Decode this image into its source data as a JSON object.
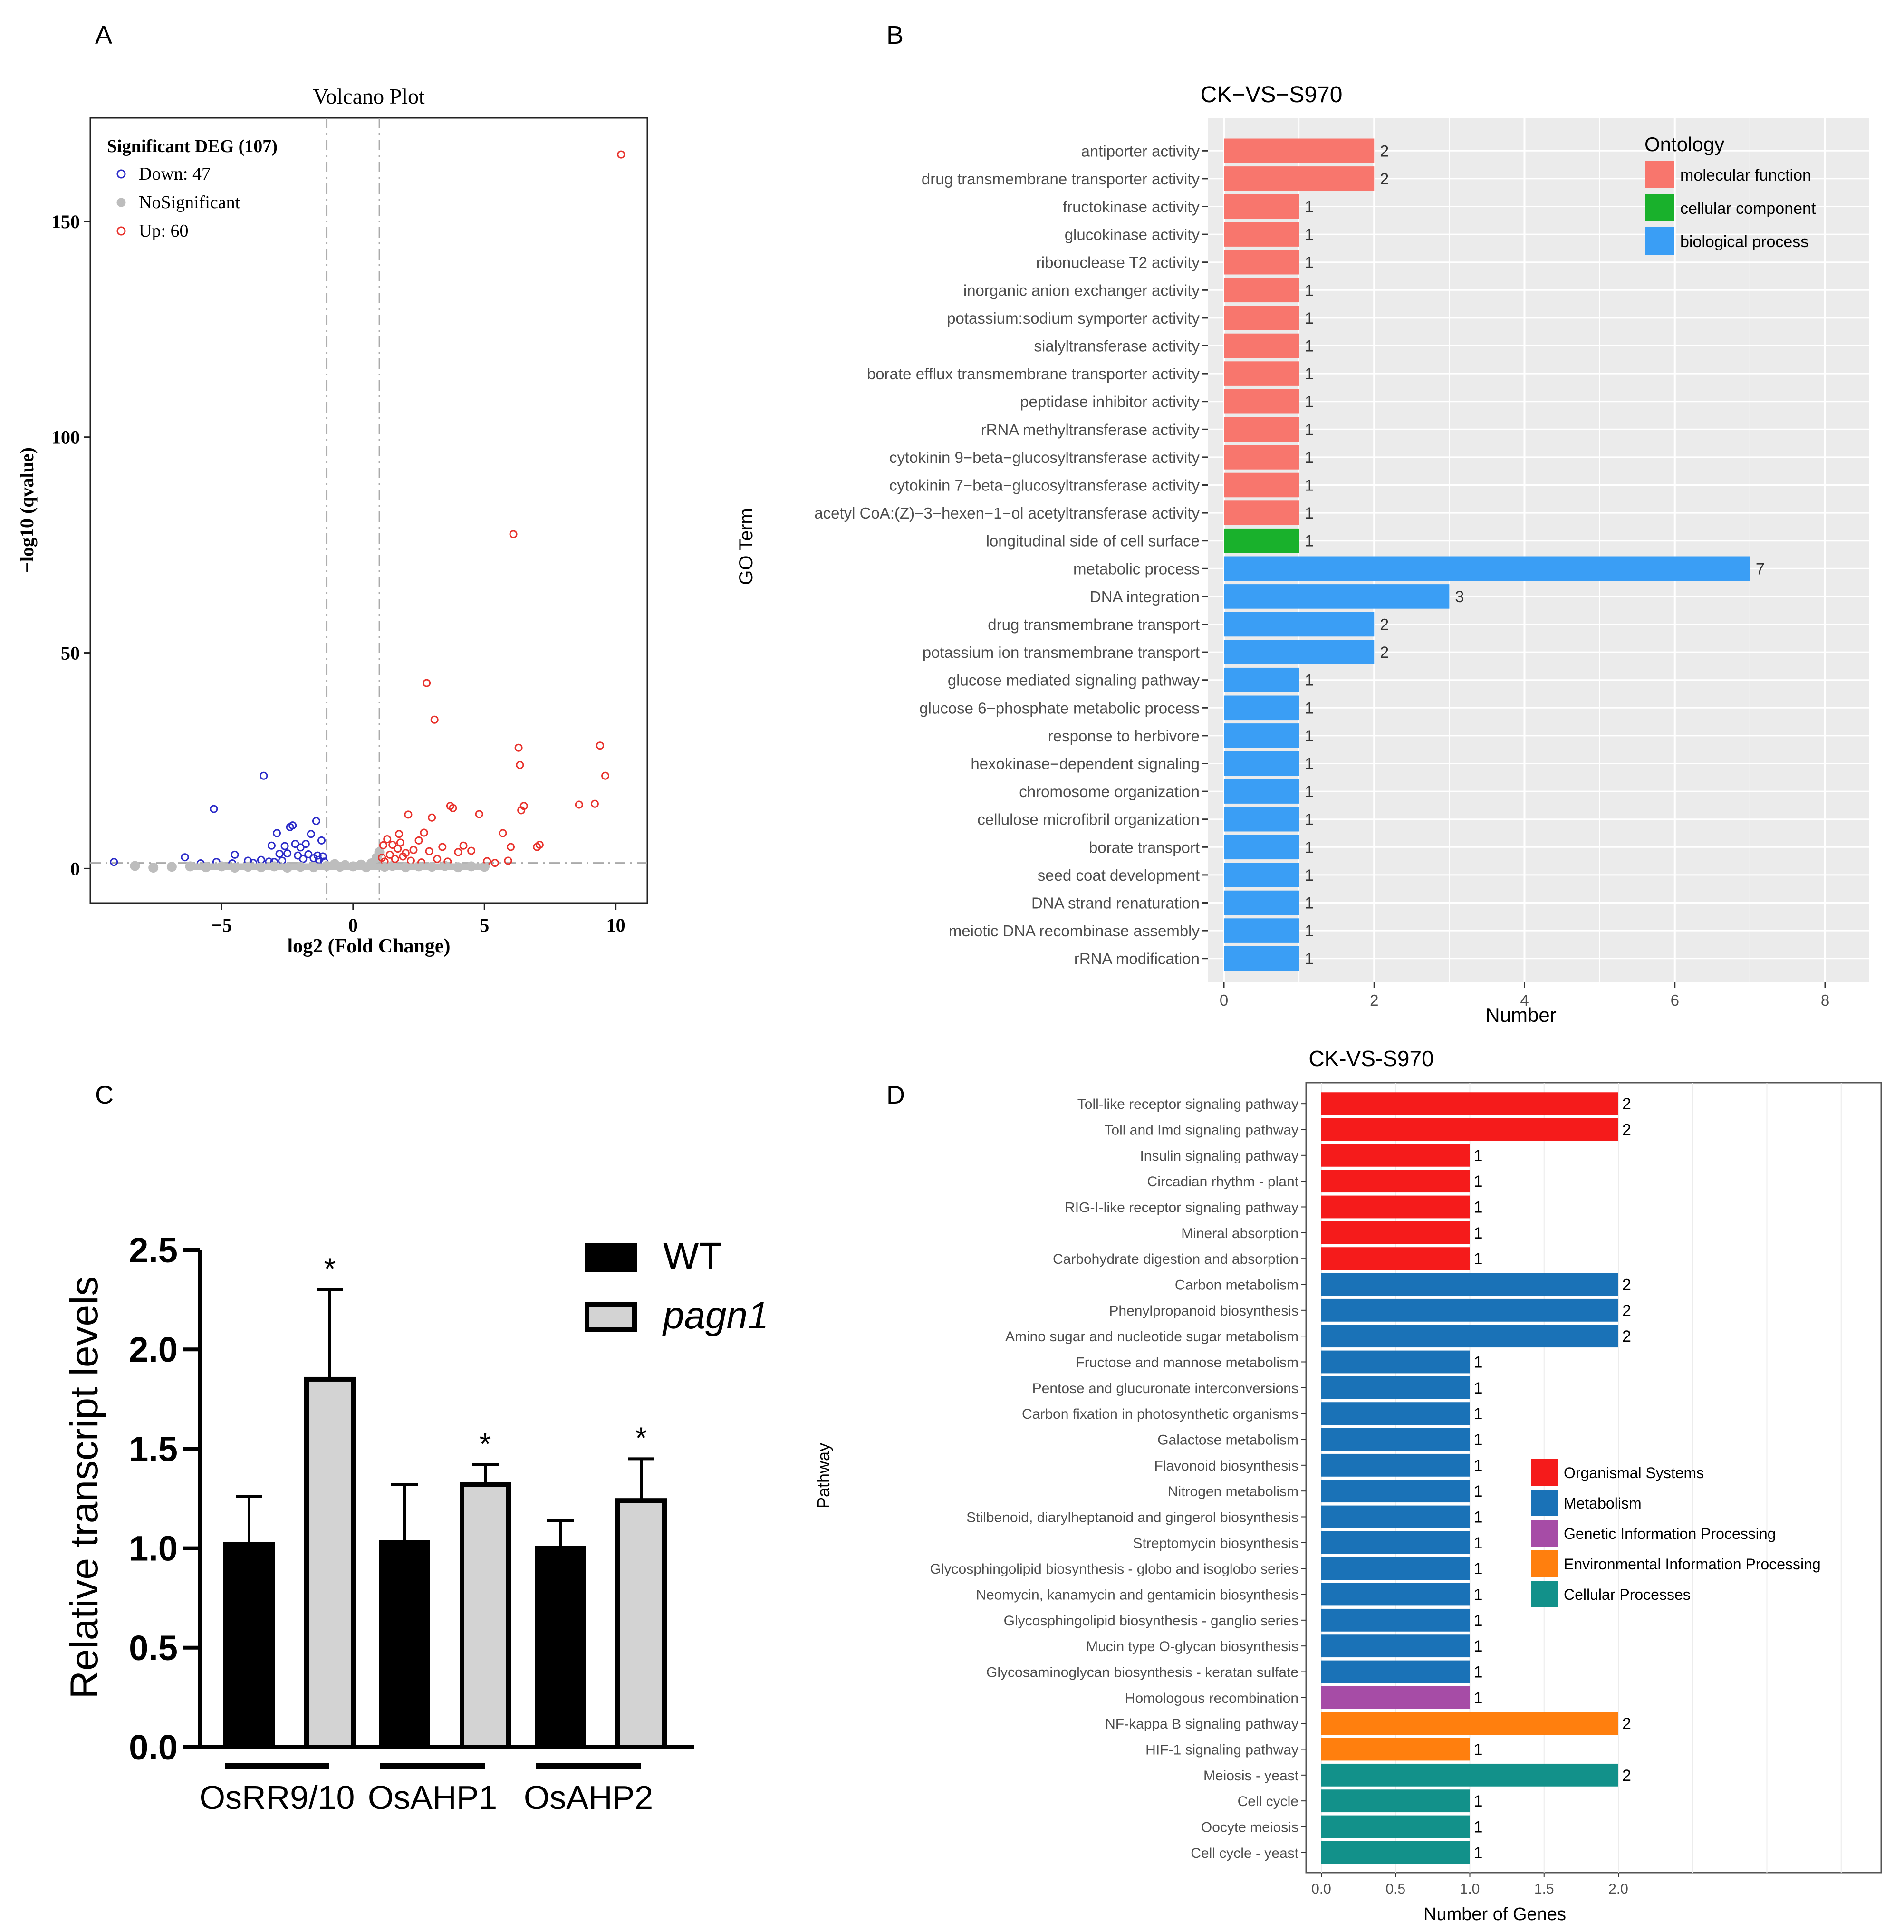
{
  "panel_letters": [
    "A",
    "B",
    "C",
    "D"
  ],
  "chart_data": [
    {
      "id": "A",
      "type": "scatter",
      "title": "Volcano Plot",
      "xlabel": "log2 (Fold Change)",
      "ylabel": "−log10 (qvalue)",
      "xlim": [
        -10,
        11.2
      ],
      "ylim": [
        -8,
        174
      ],
      "xticks": [
        -5,
        0,
        5,
        10
      ],
      "yticks": [
        0,
        50,
        100,
        150
      ],
      "thresholds": {
        "x": [
          -1,
          1
        ],
        "y": 1.3
      },
      "legend": {
        "title": "Significant DEG (107)",
        "position": "top-left",
        "entries": [
          {
            "label": "Down: 47",
            "color": "#2b2bc8"
          },
          {
            "label": "NoSignificant",
            "color": "#bdbdbd"
          },
          {
            "label": "Up: 60",
            "color": "#e8322c"
          }
        ]
      },
      "series": [
        {
          "name": "Down",
          "color": "#2b2bc8",
          "points": [
            [
              -9.1,
              1.5
            ],
            [
              -6.4,
              2.6
            ],
            [
              -5.8,
              1.2
            ],
            [
              -5.3,
              13.8
            ],
            [
              -5.2,
              1.5
            ],
            [
              -4.6,
              1.2
            ],
            [
              -4.5,
              3.2
            ],
            [
              -4.0,
              1.8
            ],
            [
              -3.8,
              1.3
            ],
            [
              -3.5,
              2.0
            ],
            [
              -3.4,
              21.5
            ],
            [
              -3.2,
              1.6
            ],
            [
              -3.1,
              5.3
            ],
            [
              -3.0,
              1.5
            ],
            [
              -2.9,
              8.2
            ],
            [
              -2.8,
              3.4
            ],
            [
              -2.7,
              1.8
            ],
            [
              -2.6,
              5.2
            ],
            [
              -2.5,
              3.5
            ],
            [
              -2.4,
              9.6
            ],
            [
              -2.3,
              10.0
            ],
            [
              -2.2,
              5.7
            ],
            [
              -2.1,
              3.0
            ],
            [
              -2.0,
              4.9
            ],
            [
              -1.9,
              2.2
            ],
            [
              -1.8,
              5.7
            ],
            [
              -1.7,
              3.3
            ],
            [
              -1.6,
              8.0
            ],
            [
              -1.5,
              2.4
            ],
            [
              -1.4,
              11.0
            ],
            [
              -1.35,
              3.0
            ],
            [
              -1.3,
              2.0
            ],
            [
              -1.2,
              6.5
            ],
            [
              -1.15,
              2.8
            ],
            [
              -1.1,
              1.6
            ]
          ]
        },
        {
          "name": "NoSignificant",
          "color": "#bdbdbd",
          "points": [
            [
              -8.3,
              0.6
            ],
            [
              -7.6,
              0.2
            ],
            [
              -6.9,
              0.4
            ],
            [
              -6.2,
              0.5
            ],
            [
              -5.6,
              0.3
            ],
            [
              -5.0,
              0.5
            ],
            [
              -4.5,
              0.2
            ],
            [
              -4.0,
              0.4
            ],
            [
              -3.5,
              0.3
            ],
            [
              -3.0,
              0.5
            ],
            [
              -2.5,
              0.2
            ],
            [
              -2.0,
              0.4
            ],
            [
              -1.5,
              0.3
            ],
            [
              -1.0,
              0.6
            ],
            [
              -0.7,
              1.0
            ],
            [
              -0.5,
              0.4
            ],
            [
              -0.3,
              0.8
            ],
            [
              0.0,
              0.5
            ],
            [
              0.3,
              0.9
            ],
            [
              0.5,
              0.3
            ],
            [
              0.7,
              1.2
            ],
            [
              0.9,
              2.5
            ],
            [
              1.0,
              3.8
            ],
            [
              1.2,
              0.4
            ],
            [
              1.5,
              0.6
            ],
            [
              2.0,
              0.3
            ],
            [
              2.5,
              0.5
            ],
            [
              3.0,
              0.4
            ],
            [
              3.5,
              0.6
            ],
            [
              4.0,
              0.3
            ],
            [
              4.5,
              0.5
            ],
            [
              5.0,
              0.4
            ]
          ]
        },
        {
          "name": "Up",
          "color": "#e8322c",
          "points": [
            [
              1.1,
              2.5
            ],
            [
              1.15,
              5.4
            ],
            [
              1.2,
              1.6
            ],
            [
              1.3,
              6.8
            ],
            [
              1.4,
              3.2
            ],
            [
              1.5,
              5.5
            ],
            [
              1.6,
              2.2
            ],
            [
              1.7,
              4.6
            ],
            [
              1.75,
              8.0
            ],
            [
              1.8,
              6.0
            ],
            [
              1.9,
              2.8
            ],
            [
              2.0,
              3.6
            ],
            [
              2.1,
              12.5
            ],
            [
              2.2,
              1.8
            ],
            [
              2.3,
              4.3
            ],
            [
              2.5,
              6.5
            ],
            [
              2.6,
              1.4
            ],
            [
              2.7,
              8.3
            ],
            [
              2.8,
              43.0
            ],
            [
              2.9,
              4.0
            ],
            [
              3.0,
              11.8
            ],
            [
              3.1,
              34.5
            ],
            [
              3.2,
              2.2
            ],
            [
              3.4,
              5.0
            ],
            [
              3.6,
              1.6
            ],
            [
              3.7,
              14.5
            ],
            [
              3.8,
              14.0
            ],
            [
              4.0,
              3.8
            ],
            [
              4.2,
              5.3
            ],
            [
              4.5,
              4.1
            ],
            [
              4.8,
              12.6
            ],
            [
              5.1,
              1.7
            ],
            [
              5.4,
              1.3
            ],
            [
              5.7,
              8.2
            ],
            [
              5.9,
              1.8
            ],
            [
              6.0,
              5.0
            ],
            [
              6.1,
              77.5
            ],
            [
              6.3,
              28.0
            ],
            [
              6.35,
              24.0
            ],
            [
              6.4,
              13.5
            ],
            [
              6.5,
              14.5
            ],
            [
              7.0,
              5.0
            ],
            [
              7.1,
              5.5
            ],
            [
              8.6,
              14.8
            ],
            [
              9.2,
              15.0
            ],
            [
              9.4,
              28.5
            ],
            [
              9.6,
              21.5
            ],
            [
              10.2,
              165.5
            ]
          ]
        }
      ]
    },
    {
      "id": "B",
      "type": "bar",
      "orientation": "horizontal",
      "title": "CK−VS−S970",
      "xlabel": "Number",
      "ylabel": "GO Term",
      "xlim": [
        0,
        8.5
      ],
      "xticks": [
        0,
        2,
        4,
        6,
        8
      ],
      "legend": {
        "title": "Ontology",
        "position": "top-right",
        "entries": [
          {
            "label": "molecular function",
            "color": "#f8766d"
          },
          {
            "label": "cellular component",
            "color": "#19b12c"
          },
          {
            "label": "biological process",
            "color": "#3a9ef5"
          }
        ]
      },
      "categories": [
        "antiporter activity",
        "drug transmembrane transporter activity",
        "fructokinase activity",
        "glucokinase activity",
        "ribonuclease T2 activity",
        "inorganic anion exchanger activity",
        "potassium:sodium symporter activity",
        "sialyltransferase activity",
        "borate efflux transmembrane transporter activity",
        "peptidase inhibitor activity",
        "rRNA methyltransferase activity",
        "cytokinin 9−beta−glucosyltransferase activity",
        "cytokinin 7−beta−glucosyltransferase activity",
        "acetyl CoA:(Z)−3−hexen−1−ol acetyltransferase activity",
        "longitudinal side of cell surface",
        "metabolic process",
        "DNA integration",
        "drug transmembrane transport",
        "potassium ion transmembrane transport",
        "glucose mediated signaling pathway",
        "glucose 6−phosphate metabolic process",
        "response to herbivore",
        "hexokinase−dependent signaling",
        "chromosome organization",
        "cellulose microfibril organization",
        "borate transport",
        "seed coat development",
        "DNA strand renaturation",
        "meiotic DNA recombinase assembly",
        "rRNA modification"
      ],
      "values": [
        2,
        2,
        1,
        1,
        1,
        1,
        1,
        1,
        1,
        1,
        1,
        1,
        1,
        1,
        1,
        7,
        3,
        2,
        2,
        1,
        1,
        1,
        1,
        1,
        1,
        1,
        1,
        1,
        1,
        1
      ],
      "groups": [
        0,
        0,
        0,
        0,
        0,
        0,
        0,
        0,
        0,
        0,
        0,
        0,
        0,
        0,
        1,
        2,
        2,
        2,
        2,
        2,
        2,
        2,
        2,
        2,
        2,
        2,
        2,
        2,
        2,
        2
      ]
    },
    {
      "id": "C",
      "type": "bar",
      "ylabel": "Relative transcript levels",
      "xlabel": "",
      "ylim": [
        0,
        2.5
      ],
      "yticks": [
        "0.0",
        "0.5",
        "1.0",
        "1.5",
        "2.0",
        "2.5"
      ],
      "categories": [
        "OsRR9/10",
        "OsAHP1",
        "OsAHP2"
      ],
      "legend": {
        "position": "top-right",
        "entries": [
          "WT",
          "pagn1"
        ]
      },
      "series": [
        {
          "name": "WT",
          "color": "#000000",
          "values": [
            1.02,
            1.03,
            1.0
          ],
          "errors": [
            0.24,
            0.29,
            0.14
          ]
        },
        {
          "name": "pagn1",
          "color": "#d3d3d3",
          "values": [
            1.85,
            1.32,
            1.24
          ],
          "errors": [
            0.45,
            0.1,
            0.21
          ]
        }
      ],
      "significance": [
        "*",
        "*",
        "*"
      ]
    },
    {
      "id": "D",
      "type": "bar",
      "orientation": "horizontal",
      "title": "CK-VS-S970",
      "xlabel": "Number of Genes",
      "ylabel": "Pathway",
      "xlim": [
        0,
        3.75
      ],
      "xticks": [
        "0.0",
        "0.5",
        "1.0",
        "1.5",
        "2.0"
      ],
      "legend": {
        "position": "center-right",
        "entries": [
          {
            "label": "Organismal Systems",
            "color": "#f51b1b"
          },
          {
            "label": "Metabolism",
            "color": "#1a72b7"
          },
          {
            "label": "Genetic Information Processing",
            "color": "#a64ca6"
          },
          {
            "label": "Environmental Information Processing",
            "color": "#ff7f0e"
          },
          {
            "label": "Cellular Processes",
            "color": "#12918a"
          }
        ]
      },
      "categories": [
        "Toll-like receptor signaling pathway",
        "Toll and Imd signaling pathway",
        "Insulin signaling pathway",
        "Circadian rhythm - plant",
        "RIG-I-like receptor signaling pathway",
        "Mineral absorption",
        "Carbohydrate digestion and absorption",
        "Carbon metabolism",
        "Phenylpropanoid biosynthesis",
        "Amino sugar and nucleotide sugar metabolism",
        "Fructose and mannose metabolism",
        "Pentose and glucuronate interconversions",
        "Carbon fixation in photosynthetic organisms",
        "Galactose metabolism",
        "Flavonoid biosynthesis",
        "Nitrogen metabolism",
        "Stilbenoid, diarylheptanoid and gingerol biosynthesis",
        "Streptomycin biosynthesis",
        "Glycosphingolipid biosynthesis - globo and isoglobo series",
        "Neomycin, kanamycin and gentamicin biosynthesis",
        "Glycosphingolipid biosynthesis - ganglio series",
        "Mucin type O-glycan biosynthesis",
        "Glycosaminoglycan biosynthesis - keratan sulfate",
        "Homologous recombination",
        "NF-kappa B signaling pathway",
        "HIF-1 signaling pathway",
        "Meiosis - yeast",
        "Cell cycle",
        "Oocyte meiosis",
        "Cell cycle - yeast"
      ],
      "values": [
        2,
        2,
        1,
        1,
        1,
        1,
        1,
        2,
        2,
        2,
        1,
        1,
        1,
        1,
        1,
        1,
        1,
        1,
        1,
        1,
        1,
        1,
        1,
        1,
        2,
        1,
        2,
        1,
        1,
        1
      ],
      "groups": [
        0,
        0,
        0,
        0,
        0,
        0,
        0,
        1,
        1,
        1,
        1,
        1,
        1,
        1,
        1,
        1,
        1,
        1,
        1,
        1,
        1,
        1,
        1,
        2,
        3,
        3,
        4,
        4,
        4,
        4
      ]
    }
  ]
}
